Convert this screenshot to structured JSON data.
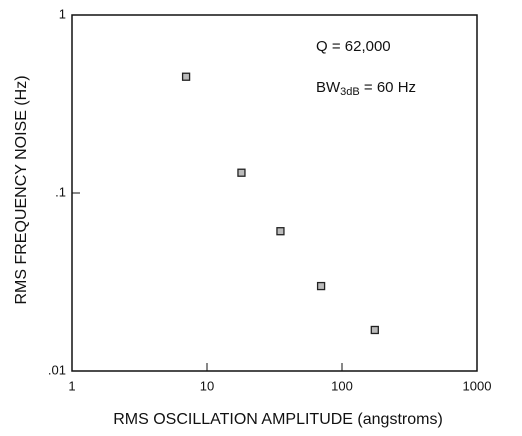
{
  "chart_data": {
    "type": "scatter",
    "x_label": "RMS OSCILLATION AMPLITUDE (angstroms)",
    "y_label": "RMS FREQUENCY NOISE (Hz)",
    "annotations": [
      {
        "text": "Q = 62,000"
      },
      {
        "text": "BW",
        "sub": "3dB",
        "rest": " = 60 Hz"
      }
    ],
    "x": [
      7,
      18,
      35,
      70,
      175
    ],
    "values": [
      0.45,
      0.13,
      0.061,
      0.03,
      0.017
    ],
    "color": "#222222",
    "xlog": true,
    "ylog": true,
    "xlim": [
      1,
      1000
    ],
    "xticks": [
      1,
      10,
      100,
      1000
    ],
    "ylim": [
      0.01,
      1
    ],
    "yticks": [
      {
        "value": 0.01,
        "label": ".01"
      },
      {
        "value": 0.1,
        "label": ".1"
      },
      1
    ]
  }
}
